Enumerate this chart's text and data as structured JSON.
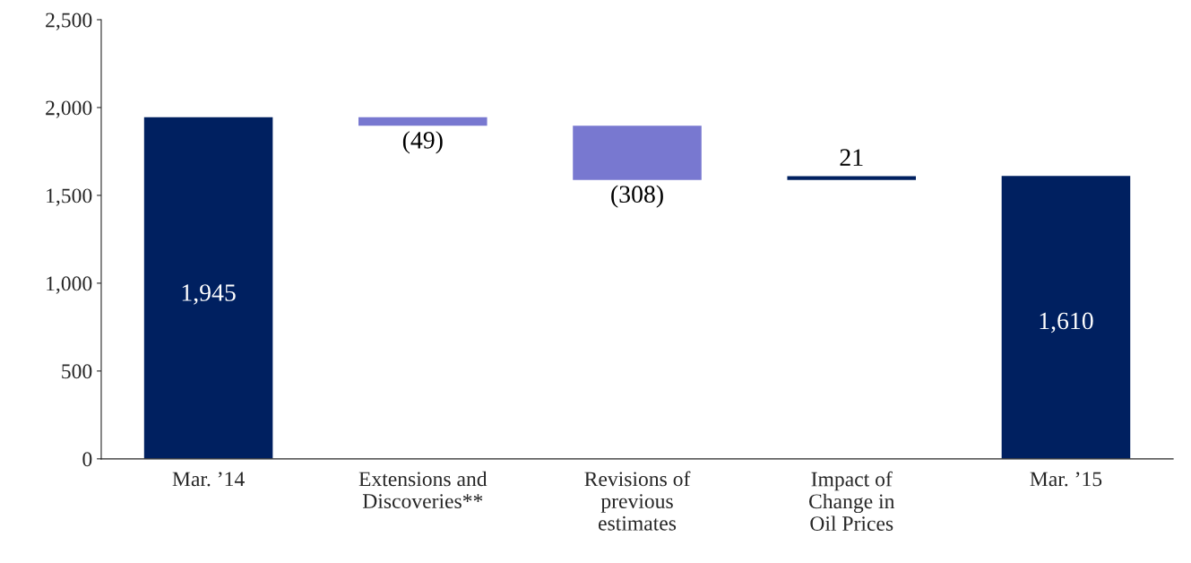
{
  "chart_data": {
    "type": "bar",
    "categories": [
      "Mar. ’14",
      "Extensions and\nDiscoveries**",
      "Revisions of\nprevious\nestimates",
      "Impact of\nChange in\nOil Prices",
      "Mar. ’15"
    ],
    "values": [
      1945,
      -49,
      -308,
      21,
      1610
    ],
    "base": [
      0,
      1945,
      1896,
      1588,
      0
    ],
    "colors": [
      "#002060",
      "#7878d0",
      "#7878d0",
      "#002060",
      "#002060"
    ],
    "value_labels": [
      "1,945",
      "(49)",
      "(308)",
      "21",
      "1,610"
    ],
    "ylim": [
      0,
      2500
    ],
    "yticks": [
      {
        "value": 0,
        "label": "0"
      },
      {
        "value": 500,
        "label": "500"
      },
      {
        "value": 1000,
        "label": "1,000"
      },
      {
        "value": 1500,
        "label": "1,500"
      },
      {
        "value": 2000,
        "label": "2,000"
      },
      {
        "value": 2500,
        "label": "2,500"
      }
    ],
    "grid": false,
    "legend": false
  }
}
